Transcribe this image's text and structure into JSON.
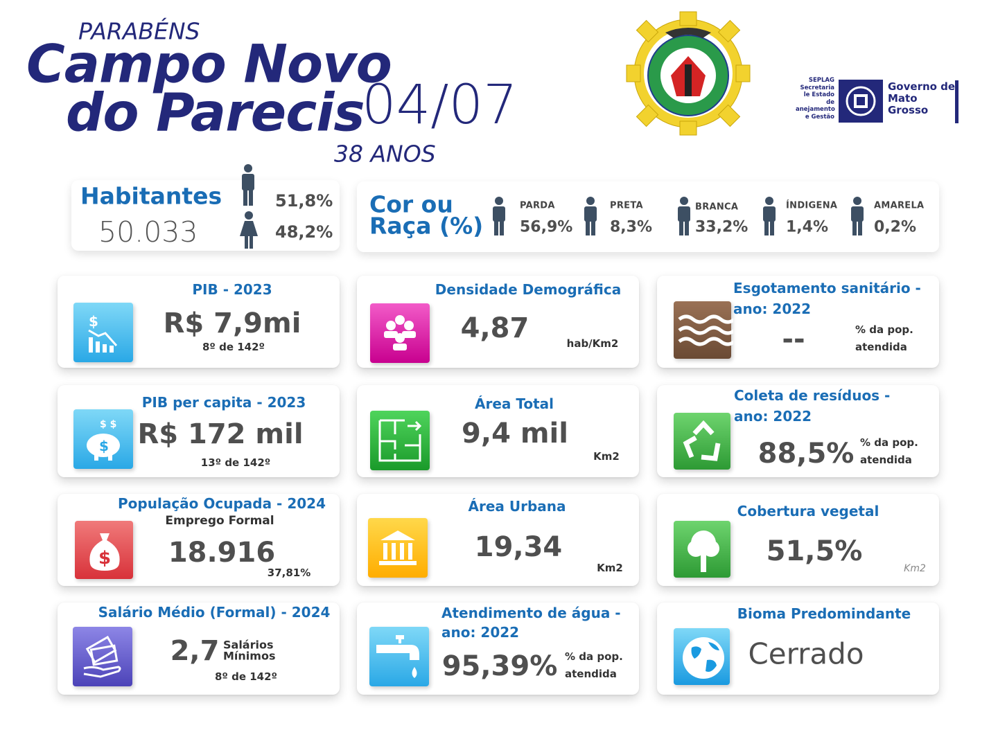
{
  "header": {
    "kicker": "PARABÉNS",
    "title_line1": "Campo Novo",
    "title_line2": "do Parecis",
    "date": "04/07",
    "age": "38 ANOS"
  },
  "logos": {
    "seplag": [
      "SEPLAG",
      "Secretaria",
      "le Estado de",
      "anejamento",
      "e Gestão"
    ],
    "government": [
      "Governo de",
      "Mato",
      "Grosso"
    ]
  },
  "habitantes": {
    "label": "Habitantes",
    "total": "50.033",
    "male": "51,8%",
    "female": "48,2%"
  },
  "cor_raca": {
    "title_line1": "Cor ou",
    "title_line2": "Raça (%)",
    "groups": [
      {
        "label": "PARDA",
        "value": "56,9%"
      },
      {
        "label": "PRETA",
        "value": "8,3%"
      },
      {
        "label": "BRANCA",
        "value": "33,2%"
      },
      {
        "label": "ÍNDIGENA",
        "value": "1,4%"
      },
      {
        "label": "AMARELA",
        "value": "0,2%"
      }
    ]
  },
  "cards": [
    {
      "title": "PIB - 2023",
      "value": "R$ 7,9mi",
      "note": "8º de 142º"
    },
    {
      "title": "PIB per capita - 2023",
      "value": "R$ 172 mil",
      "note": "13º de 142º"
    },
    {
      "title": "População Ocupada - 2024",
      "subtitle": "Emprego Formal",
      "value": "18.916",
      "note": "37,81%"
    },
    {
      "title": "Salário Médio (Formal) - 2024",
      "value": "2,7",
      "unit": [
        "Salários",
        "Mínimos"
      ],
      "note": "8º de 142º"
    },
    {
      "title": "Densidade Demográfica",
      "value": "4,87",
      "unit": "hab/Km2"
    },
    {
      "title": "Área Total",
      "value": "9,4 mil",
      "unit": "Km2"
    },
    {
      "title": "Área Urbana",
      "value": "19,34",
      "unit": "Km2"
    },
    {
      "title": [
        "Atendimento de água -",
        "ano: 2022"
      ],
      "value": "95,39%",
      "unit": [
        "% da pop.",
        "atendida"
      ]
    },
    {
      "title": [
        "Esgotamento sanitário -",
        "ano: 2022"
      ],
      "value": "--",
      "unit": [
        "% da pop.",
        "atendida"
      ]
    },
    {
      "title": [
        "Coleta de resíduos -",
        "ano: 2022"
      ],
      "value": "88,5%",
      "unit": [
        "% da pop.",
        "atendida"
      ]
    },
    {
      "title": "Cobertura vegetal",
      "value": "51,5%",
      "unit": "Km2"
    },
    {
      "title": "Bioma Predomindante",
      "value": "Cerrado"
    }
  ]
}
